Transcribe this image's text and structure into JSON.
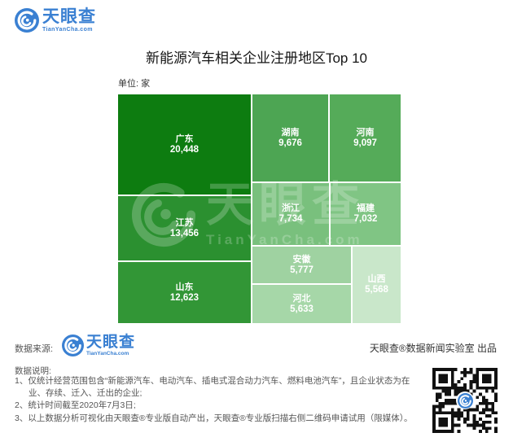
{
  "brand": {
    "logo_text": "天眼查",
    "logo_domain": "TianYanCha.com",
    "logo_blue": "#3a80d2"
  },
  "chart_data": {
    "type": "treemap",
    "title": "新能源汽车相关企业注册地区Top 10",
    "unit_label": "单位: 家",
    "unit": "家",
    "legend": "none",
    "cells": [
      {
        "name": "广东",
        "value": 20448,
        "value_label": "20,448",
        "color": "#0d7c10"
      },
      {
        "name": "江苏",
        "value": 13456,
        "value_label": "13,456",
        "color": "#2b9030"
      },
      {
        "name": "山东",
        "value": 12623,
        "value_label": "12,623",
        "color": "#329636"
      },
      {
        "name": "湖南",
        "value": 9676,
        "value_label": "9,676",
        "color": "#4da553"
      },
      {
        "name": "河南",
        "value": 9097,
        "value_label": "9,097",
        "color": "#55ab59"
      },
      {
        "name": "浙江",
        "value": 7734,
        "value_label": "7,734",
        "color": "#79c07d"
      },
      {
        "name": "福建",
        "value": 7032,
        "value_label": "7,032",
        "color": "#80c584"
      },
      {
        "name": "安徽",
        "value": 5777,
        "value_label": "5,777",
        "color": "#9fd2a1"
      },
      {
        "name": "河北",
        "value": 5633,
        "value_label": "5,633",
        "color": "#a6d7a8"
      },
      {
        "name": "山西",
        "value": 5568,
        "value_label": "5,568",
        "color": "#c9e7ca"
      }
    ]
  },
  "watermark": {
    "text": "天眼查",
    "domain": "TianYanCha.com"
  },
  "footer": {
    "source_label": "数据来源:",
    "produced_by": "天眼查®数据新闻实验室 出品",
    "notes_title": "数据说明:",
    "notes": [
      "1、仅统计经营范围包含“新能源汽车、电动汽车、插电式混合动力汽车、燃料电池汽车”，且企业状态为在业、存续、迁入、迁出的企业;",
      "2、统计时间截至2020年7月3日;",
      "3、以上数据分析可视化由天眼查®专业版自动产出，天眼查®专业版扫描右侧二维码申请试用（限媒体）。"
    ]
  }
}
